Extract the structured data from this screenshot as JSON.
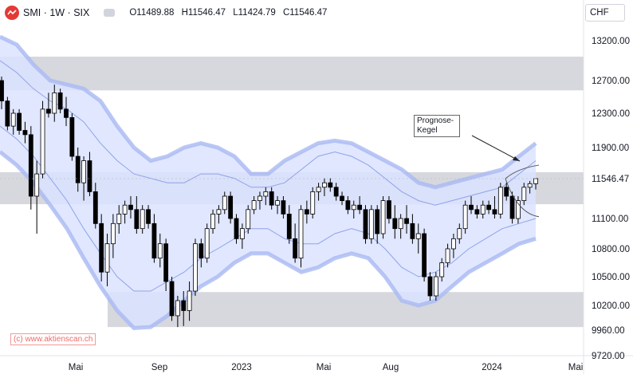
{
  "header": {
    "symbol": "SMI · 1W · SIX",
    "open": "O11489.88",
    "high": "H11546.47",
    "low": "L11424.79",
    "close": "C11546.47"
  },
  "currency_button": "CHF",
  "watermark": "(c) www.aktienscan.ch",
  "annotation": {
    "line1": "Prognose-",
    "line2": "Kegel"
  },
  "last_price_label": "11546.47",
  "colors": {
    "band_fill": "#dbe3ff",
    "band_line": "#a9b9f2",
    "zone_fill": "#d6d8de",
    "candle_up": "#ffffff",
    "candle_down": "#000000",
    "logo": "#e53935"
  },
  "chart_data": {
    "type": "candlestick",
    "y_axis": {
      "ticks": [
        9720,
        9960,
        10200,
        10500,
        10800,
        11100,
        11300,
        11600,
        11900,
        12300,
        12700,
        13200
      ],
      "labels": [
        "9720.00",
        "9960.00",
        "10200.00",
        "10500.00",
        "10800.00",
        "11100.00",
        "11546.47",
        "11900.00",
        "12300.00",
        "12700.00",
        "13200.00"
      ]
    },
    "x_axis": {
      "labels": [
        "Mai",
        "Sep",
        "2023",
        "Mai",
        "Aug",
        "2024",
        "Mai"
      ]
    },
    "zones": [
      {
        "low": 12580,
        "high": 13000
      },
      {
        "low": 11260,
        "high": 11620
      },
      {
        "low": 9990,
        "high": 10340
      }
    ],
    "bands": {
      "outer_upper": [
        13250,
        13150,
        12900,
        12700,
        12650,
        12600,
        12450,
        12150,
        11900,
        11750,
        11800,
        11900,
        11950,
        11900,
        11800,
        11600,
        11600,
        11750,
        11850,
        11950,
        11980,
        11950,
        11850,
        11750,
        11650,
        11500,
        11450,
        11500,
        11550,
        11600,
        11650,
        11800,
        11950
      ],
      "outer_lower": [
        11850,
        11700,
        11500,
        11250,
        11000,
        10700,
        10400,
        10150,
        9980,
        9990,
        10100,
        10250,
        10400,
        10500,
        10650,
        10750,
        10750,
        10650,
        10550,
        10600,
        10700,
        10750,
        10700,
        10500,
        10250,
        10200,
        10250,
        10400,
        10550,
        10650,
        10750,
        10850,
        10900
      ],
      "inner_upper": [
        12950,
        12800,
        12600,
        12450,
        12350,
        12200,
        11950,
        11750,
        11600,
        11550,
        11500,
        11500,
        11600,
        11600,
        11550,
        11450,
        11450,
        11500,
        11650,
        11800,
        11850,
        11800,
        11700,
        11550,
        11400,
        11300,
        11250,
        11300,
        11350,
        11400,
        11450,
        11600,
        11750
      ],
      "inner_lower": [
        12150,
        12000,
        11800,
        11550,
        11300,
        11000,
        10750,
        10500,
        10350,
        10350,
        10450,
        10550,
        10700,
        10800,
        10900,
        11000,
        11000,
        10900,
        10850,
        10850,
        10950,
        11000,
        10950,
        10800,
        10600,
        10500,
        10550,
        10650,
        10800,
        10900,
        11000,
        11050,
        11100
      ]
    },
    "candles": [
      [
        12700,
        12750,
        12350,
        12450
      ],
      [
        12450,
        12500,
        12100,
        12150
      ],
      [
        12150,
        12350,
        12050,
        12300
      ],
      [
        12300,
        12350,
        12050,
        12100
      ],
      [
        12100,
        12200,
        11950,
        12050
      ],
      [
        12050,
        12150,
        11200,
        11350
      ],
      [
        11350,
        11750,
        10950,
        11600
      ],
      [
        11600,
        12450,
        11550,
        12350
      ],
      [
        12350,
        12550,
        12250,
        12300
      ],
      [
        12300,
        12650,
        12200,
        12550
      ],
      [
        12550,
        12600,
        12300,
        12350
      ],
      [
        12350,
        12500,
        12150,
        12250
      ],
      [
        12250,
        12300,
        11750,
        11800
      ],
      [
        11800,
        11900,
        11400,
        11500
      ],
      [
        11500,
        11800,
        11300,
        11750
      ],
      [
        11750,
        11850,
        11350,
        11400
      ],
      [
        11400,
        11500,
        11000,
        11050
      ],
      [
        11050,
        11150,
        10450,
        10550
      ],
      [
        10550,
        10950,
        10400,
        10850
      ],
      [
        10850,
        11150,
        10700,
        11050
      ],
      [
        11050,
        11250,
        10950,
        11150
      ],
      [
        11150,
        11300,
        11050,
        11250
      ],
      [
        11250,
        11350,
        11100,
        11200
      ],
      [
        11200,
        11350,
        10950,
        11000
      ],
      [
        11000,
        11250,
        10950,
        11200
      ],
      [
        11200,
        11250,
        11000,
        11050
      ],
      [
        11050,
        11150,
        10650,
        10700
      ],
      [
        10700,
        10950,
        10600,
        10850
      ],
      [
        10850,
        10900,
        10350,
        10450
      ],
      [
        10450,
        10500,
        10050,
        10100
      ],
      [
        10100,
        10300,
        9990,
        10250
      ],
      [
        10250,
        10350,
        10000,
        10150
      ],
      [
        10150,
        10450,
        10050,
        10350
      ],
      [
        10350,
        10900,
        10300,
        10850
      ],
      [
        10850,
        10900,
        10600,
        10700
      ],
      [
        10700,
        11050,
        10650,
        11000
      ],
      [
        11000,
        11200,
        10950,
        11150
      ],
      [
        11150,
        11250,
        11050,
        11200
      ],
      [
        11200,
        11400,
        11150,
        11350
      ],
      [
        11350,
        11400,
        11050,
        11100
      ],
      [
        11100,
        11150,
        10850,
        10900
      ],
      [
        10900,
        11050,
        10800,
        11000
      ],
      [
        11000,
        11250,
        10950,
        11200
      ],
      [
        11200,
        11350,
        11150,
        11300
      ],
      [
        11300,
        11400,
        11200,
        11350
      ],
      [
        11350,
        11450,
        11250,
        11400
      ],
      [
        11400,
        11450,
        11200,
        11250
      ],
      [
        11250,
        11350,
        11150,
        11300
      ],
      [
        11300,
        11350,
        11100,
        11150
      ],
      [
        11150,
        11250,
        10850,
        10900
      ],
      [
        10900,
        11050,
        10650,
        10700
      ],
      [
        10700,
        11250,
        10600,
        11200
      ],
      [
        11200,
        11300,
        11050,
        11150
      ],
      [
        11150,
        11450,
        11100,
        11400
      ],
      [
        11400,
        11500,
        11300,
        11450
      ],
      [
        11450,
        11550,
        11350,
        11500
      ],
      [
        11500,
        11550,
        11400,
        11450
      ],
      [
        11450,
        11500,
        11300,
        11350
      ],
      [
        11350,
        11400,
        11250,
        11300
      ],
      [
        11300,
        11350,
        11150,
        11200
      ],
      [
        11200,
        11300,
        11100,
        11250
      ],
      [
        11250,
        11350,
        11150,
        11200
      ],
      [
        11200,
        11250,
        10850,
        10900
      ],
      [
        10900,
        11250,
        10850,
        11200
      ],
      [
        11200,
        11250,
        10850,
        10950
      ],
      [
        10950,
        11350,
        10900,
        11300
      ],
      [
        11300,
        11350,
        11050,
        11100
      ],
      [
        11100,
        11250,
        10900,
        11000
      ],
      [
        11000,
        11150,
        10900,
        11100
      ],
      [
        11100,
        11250,
        10950,
        11050
      ],
      [
        11050,
        11150,
        10850,
        10900
      ],
      [
        10900,
        11050,
        10750,
        10950
      ],
      [
        10950,
        11000,
        10450,
        10500
      ],
      [
        10500,
        10550,
        10250,
        10300
      ],
      [
        10300,
        10550,
        10250,
        10500
      ],
      [
        10500,
        10700,
        10450,
        10650
      ],
      [
        10650,
        10850,
        10600,
        10800
      ],
      [
        10800,
        10950,
        10700,
        10900
      ],
      [
        10900,
        11050,
        10850,
        11000
      ],
      [
        11000,
        11300,
        10950,
        11250
      ],
      [
        11250,
        11350,
        11150,
        11200
      ],
      [
        11200,
        11250,
        11100,
        11150
      ],
      [
        11150,
        11300,
        11100,
        11250
      ],
      [
        11250,
        11300,
        11150,
        11200
      ],
      [
        11200,
        11350,
        11100,
        11150
      ],
      [
        11150,
        11500,
        11100,
        11450
      ],
      [
        11450,
        11500,
        11300,
        11350
      ],
      [
        11350,
        11400,
        11050,
        11100
      ],
      [
        11100,
        11350,
        11050,
        11300
      ],
      [
        11300,
        11500,
        11250,
        11450
      ],
      [
        11450,
        11520,
        11380,
        11490
      ],
      [
        11489.88,
        11546.47,
        11424.79,
        11546.47
      ]
    ],
    "forecast_cone": {
      "upper_end": 11700,
      "lower_end": 11120
    },
    "last_value": 11546.47
  }
}
